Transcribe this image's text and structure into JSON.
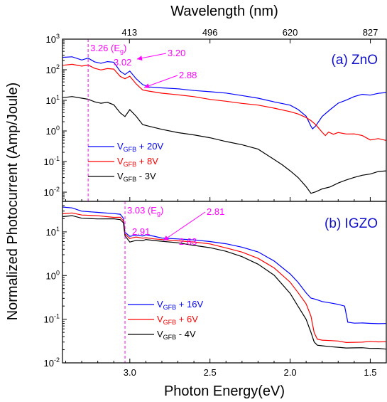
{
  "chart_data": {
    "type": "line",
    "xlabel": "Photon Energy(eV)",
    "x2label": "Wavelength (nm)",
    "ylabel": "Normalized Photocurrent (Amp/Joule)",
    "x_range_eV": [
      3.42,
      1.4
    ],
    "x_reversed": true,
    "x_ticks": [
      "3.0",
      "2.5",
      "2.0",
      "1.5"
    ],
    "x_tick_values": [
      3.0,
      2.5,
      2.0,
      1.5
    ],
    "top_ticks": [
      "413",
      "496",
      "620",
      "827"
    ],
    "top_tick_values_nm": [
      413,
      496,
      620,
      827
    ],
    "y_scale": "log",
    "panels": [
      {
        "title": "(a) ZnO",
        "ylim": [
          0.005,
          1000
        ],
        "y_ticks": [
          {
            "base": "10",
            "exp": "-2"
          },
          {
            "base": "10",
            "exp": "-1"
          },
          {
            "base": "10",
            "exp": "0"
          },
          {
            "base": "10",
            "exp": "1"
          },
          {
            "base": "10",
            "exp": "2"
          },
          {
            "base": "10",
            "exp": "3"
          }
        ],
        "vline": {
          "x": 3.26,
          "label": "3.26 (E",
          "label_sub": "g",
          "label_close": ")"
        },
        "annotations": [
          {
            "text": "3.20",
            "x": 3.2
          },
          {
            "text": "3.02",
            "x": 3.02
          },
          {
            "text": "2.88",
            "x": 2.88
          }
        ],
        "legend": [
          {
            "pre": "V",
            "sub": "GFB",
            "post": " + 20V",
            "color": "#0000ff"
          },
          {
            "pre": "V",
            "sub": "GFB",
            "post": " + 8V",
            "color": "#ff0000"
          },
          {
            "pre": "V",
            "sub": "GFB",
            "post": " - 3V",
            "color": "#000000"
          }
        ],
        "series": [
          {
            "color": "#0000ff",
            "x": [
              3.42,
              3.36,
              3.3,
              3.26,
              3.22,
              3.18,
              3.14,
              3.1,
              3.06,
              3.03,
              3.0,
              2.96,
              2.92,
              2.88,
              2.8,
              2.7,
              2.6,
              2.5,
              2.4,
              2.3,
              2.2,
              2.1,
              2.0,
              1.95,
              1.9,
              1.87,
              1.86,
              1.84,
              1.8,
              1.75,
              1.7,
              1.65,
              1.6,
              1.55,
              1.5,
              1.45,
              1.4
            ],
            "y": [
              260,
              270,
              210,
              240,
              180,
              160,
              180,
              180,
              90,
              70,
              90,
              50,
              32,
              28,
              26,
              24,
              21,
              19,
              17,
              14,
              12,
              9,
              7,
              5,
              3,
              1.4,
              1.2,
              1.5,
              3,
              5,
              8,
              10,
              13,
              16,
              15,
              17,
              18
            ]
          },
          {
            "color": "#ff0000",
            "x": [
              3.42,
              3.36,
              3.3,
              3.26,
              3.22,
              3.18,
              3.14,
              3.1,
              3.06,
              3.03,
              3.0,
              2.96,
              2.92,
              2.88,
              2.8,
              2.7,
              2.6,
              2.5,
              2.4,
              2.3,
              2.2,
              2.1,
              2.0,
              1.95,
              1.9,
              1.87,
              1.84,
              1.8,
              1.78,
              1.76,
              1.73,
              1.7,
              1.65,
              1.6,
              1.55,
              1.5,
              1.45,
              1.4
            ],
            "y": [
              140,
              150,
              130,
              140,
              115,
              100,
              110,
              105,
              60,
              50,
              60,
              35,
              22,
              20,
              17,
              15,
              13,
              11,
              9.5,
              8,
              7,
              5.5,
              4.2,
              3.5,
              2.8,
              2.2,
              1.6,
              0.9,
              0.7,
              0.9,
              0.8,
              0.9,
              0.8,
              0.8,
              0.7,
              0.5,
              0.55,
              0.5
            ]
          },
          {
            "color": "#000000",
            "x": [
              3.42,
              3.36,
              3.3,
              3.26,
              3.22,
              3.18,
              3.14,
              3.1,
              3.06,
              3.03,
              3.0,
              2.96,
              2.92,
              2.88,
              2.8,
              2.7,
              2.6,
              2.5,
              2.4,
              2.3,
              2.2,
              2.1,
              2.05,
              2.0,
              1.95,
              1.9,
              1.87,
              1.84,
              1.8,
              1.75,
              1.7,
              1.65,
              1.6,
              1.55,
              1.5,
              1.45,
              1.4
            ],
            "y": [
              12,
              13,
              12,
              11,
              9,
              8,
              8.5,
              7,
              4,
              3,
              5,
              3,
              1.6,
              1.4,
              1.1,
              0.9,
              0.75,
              0.6,
              0.45,
              0.35,
              0.25,
              0.12,
              0.08,
              0.05,
              0.03,
              0.015,
              0.009,
              0.01,
              0.013,
              0.015,
              0.02,
              0.025,
              0.03,
              0.035,
              0.04,
              0.048,
              0.05
            ]
          }
        ]
      },
      {
        "title": "(b) IGZO",
        "ylim": [
          0.01,
          50
        ],
        "y_ticks": [
          {
            "base": "10",
            "exp": "-2"
          },
          {
            "base": "10",
            "exp": "-1"
          },
          {
            "base": "10",
            "exp": "0"
          },
          {
            "base": "10",
            "exp": "1"
          }
        ],
        "vline": {
          "x": 3.03,
          "label": "3.03 (E",
          "label_sub": "g",
          "label_close": ")"
        },
        "annotations": [
          {
            "text": "2.81",
            "x": 2.81
          },
          {
            "text": "2.91",
            "x": 2.91
          },
          {
            "text": "2.63",
            "x": 2.63
          }
        ],
        "legend": [
          {
            "pre": "V",
            "sub": "GFB",
            "post": " + 16V",
            "color": "#0000ff"
          },
          {
            "pre": "V",
            "sub": "GFB",
            "post": " + 6V",
            "color": "#ff0000"
          },
          {
            "pre": "V",
            "sub": "GFB",
            "post": " - 4V",
            "color": "#000000"
          }
        ],
        "series": [
          {
            "color": "#0000ff",
            "x": [
              3.42,
              3.36,
              3.3,
              3.2,
              3.1,
              3.06,
              3.04,
              3.03,
              3.0,
              2.96,
              2.92,
              2.9,
              2.85,
              2.8,
              2.7,
              2.6,
              2.5,
              2.4,
              2.3,
              2.2,
              2.1,
              2.0,
              1.95,
              1.9,
              1.87,
              1.84,
              1.8,
              1.75,
              1.7,
              1.66,
              1.64,
              1.6,
              1.55,
              1.5,
              1.45,
              1.4
            ],
            "y": [
              38,
              36,
              30,
              28,
              26,
              25,
              20,
              10,
              8,
              8.5,
              8,
              8.5,
              7.8,
              7.4,
              7,
              6.6,
              6,
              5.3,
              4.4,
              3.4,
              2.2,
              1.1,
              0.7,
              0.4,
              0.3,
              0.28,
              0.26,
              0.24,
              0.22,
              0.2,
              0.085,
              0.08,
              0.08,
              0.082,
              0.08,
              0.08
            ]
          },
          {
            "color": "#ff0000",
            "x": [
              3.42,
              3.36,
              3.3,
              3.2,
              3.1,
              3.06,
              3.04,
              3.03,
              3.0,
              2.96,
              2.92,
              2.9,
              2.85,
              2.8,
              2.7,
              2.6,
              2.5,
              2.4,
              2.3,
              2.2,
              2.1,
              2.0,
              1.95,
              1.9,
              1.87,
              1.85,
              1.83,
              1.8,
              1.75,
              1.7,
              1.65,
              1.6,
              1.55,
              1.5,
              1.45,
              1.4
            ],
            "y": [
              26,
              27,
              24,
              23,
              22,
              22,
              18,
              9,
              7,
              7.5,
              7,
              7.5,
              7,
              6.7,
              6.2,
              5.8,
              5.2,
              4.4,
              3.5,
              2.5,
              1.5,
              0.7,
              0.4,
              0.22,
              0.12,
              0.05,
              0.035,
              0.033,
              0.032,
              0.031,
              0.03,
              0.03,
              0.03,
              0.031,
              0.03,
              0.03
            ]
          },
          {
            "color": "#000000",
            "x": [
              3.42,
              3.36,
              3.3,
              3.2,
              3.1,
              3.06,
              3.04,
              3.03,
              3.0,
              2.96,
              2.92,
              2.9,
              2.85,
              2.8,
              2.7,
              2.6,
              2.5,
              2.4,
              2.3,
              2.2,
              2.1,
              2.0,
              1.95,
              1.9,
              1.87,
              1.85,
              1.83,
              1.8,
              1.75,
              1.7,
              1.65,
              1.6,
              1.55,
              1.5,
              1.45,
              1.4
            ],
            "y": [
              22,
              23,
              21,
              20,
              20,
              19,
              16,
              8,
              6,
              6.5,
              6.3,
              6.7,
              6.3,
              6,
              5.5,
              5,
              4.4,
              3.6,
              2.7,
              1.8,
              1.0,
              0.4,
              0.2,
              0.1,
              0.05,
              0.03,
              0.025,
              0.024,
              0.024,
              0.023,
              0.022,
              0.022,
              0.022,
              0.021,
              0.022,
              0.021
            ]
          }
        ]
      }
    ]
  }
}
